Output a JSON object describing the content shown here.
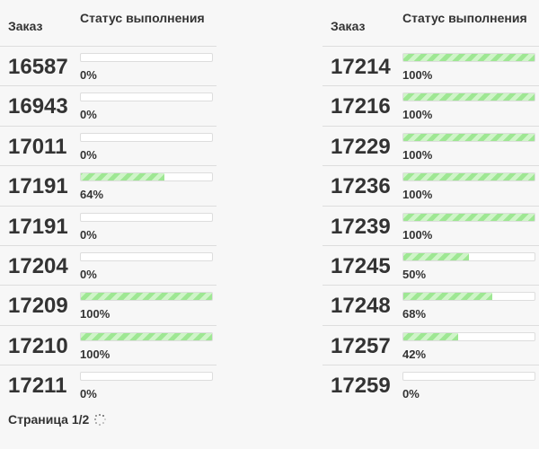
{
  "left": {
    "header": {
      "order": "Заказ",
      "status": "Статус выполнения"
    },
    "rows": [
      {
        "order": "16587",
        "progress": 0,
        "label": "0%"
      },
      {
        "order": "16943",
        "progress": 0,
        "label": "0%"
      },
      {
        "order": "17011",
        "progress": 0,
        "label": "0%"
      },
      {
        "order": "17191",
        "progress": 64,
        "label": "64%"
      },
      {
        "order": "17191",
        "progress": 0,
        "label": "0%"
      },
      {
        "order": "17204",
        "progress": 0,
        "label": "0%"
      },
      {
        "order": "17209",
        "progress": 100,
        "label": "100%"
      },
      {
        "order": "17210",
        "progress": 100,
        "label": "100%"
      },
      {
        "order": "17211",
        "progress": 0,
        "label": "0%"
      }
    ]
  },
  "right": {
    "header": {
      "order": "Заказ",
      "status": "Статус выполнения"
    },
    "rows": [
      {
        "order": "17214",
        "progress": 100,
        "label": "100%"
      },
      {
        "order": "17216",
        "progress": 100,
        "label": "100%"
      },
      {
        "order": "17229",
        "progress": 100,
        "label": "100%"
      },
      {
        "order": "17236",
        "progress": 100,
        "label": "100%"
      },
      {
        "order": "17239",
        "progress": 100,
        "label": "100%"
      },
      {
        "order": "17245",
        "progress": 50,
        "label": "50%"
      },
      {
        "order": "17248",
        "progress": 68,
        "label": "68%"
      },
      {
        "order": "17257",
        "progress": 42,
        "label": "42%"
      },
      {
        "order": "17259",
        "progress": 0,
        "label": "0%"
      }
    ]
  },
  "footer": {
    "page_label": "Страница 1/2",
    "spinner_icon": "loading-spinner-icon"
  },
  "colors": {
    "bar_fill": "#9ee793",
    "bar_fill_light": "#cff5c8",
    "text": "#333333",
    "border": "#dddddd"
  }
}
